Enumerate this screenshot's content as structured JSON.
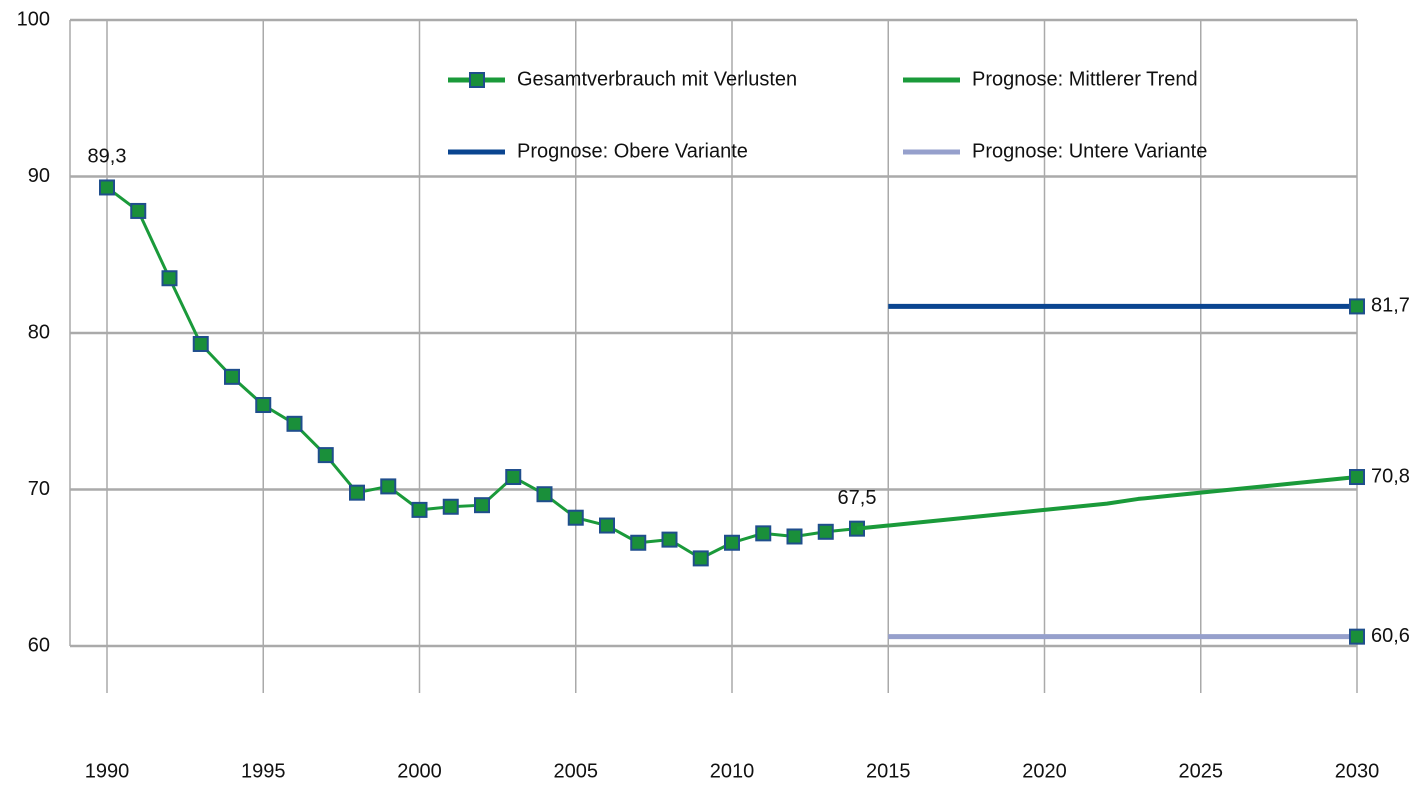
{
  "chart_data": {
    "type": "line",
    "x": [
      1990,
      1991,
      1992,
      1993,
      1994,
      1995,
      1996,
      1997,
      1998,
      1999,
      2000,
      2001,
      2002,
      2003,
      2004,
      2005,
      2006,
      2007,
      2008,
      2009,
      2010,
      2011,
      2012,
      2013,
      2014,
      2015,
      2016,
      2017,
      2018,
      2019,
      2020,
      2021,
      2022,
      2023,
      2024,
      2025,
      2026,
      2027,
      2028,
      2029,
      2030
    ],
    "xlim": [
      1990,
      2030
    ],
    "xticks": [
      1990,
      1995,
      2000,
      2005,
      2010,
      2015,
      2020,
      2025,
      2030
    ],
    "ylim": [
      57,
      100
    ],
    "yticks": [
      60,
      70,
      80,
      90,
      100
    ],
    "grid": true,
    "legend": "top",
    "series": [
      {
        "name": "Gesamtverbrauch mit Verlusten",
        "color": "#1a9a3a",
        "marker": "all",
        "values": [
          89.3,
          87.8,
          83.5,
          79.3,
          77.2,
          75.4,
          74.2,
          72.2,
          69.8,
          70.2,
          68.7,
          68.9,
          69.0,
          70.8,
          69.7,
          68.2,
          67.7,
          66.6,
          66.8,
          65.6,
          66.6,
          67.2,
          67.0,
          67.3,
          67.5,
          null,
          null,
          null,
          null,
          null,
          null,
          null,
          null,
          null,
          null,
          null,
          null,
          null,
          null,
          null,
          null
        ],
        "value_labels": [
          "89,3",
          null,
          null,
          null,
          null,
          null,
          null,
          null,
          null,
          null,
          null,
          null,
          null,
          null,
          null,
          null,
          null,
          null,
          null,
          null,
          null,
          null,
          null,
          null,
          "67,5",
          null,
          null,
          null,
          null,
          null,
          null,
          null,
          null,
          null,
          null,
          null,
          null,
          null,
          null,
          null,
          null
        ]
      },
      {
        "name": "Prognose: Mittlerer Trend",
        "color": "#1a9a3a",
        "marker": "last",
        "values": [
          null,
          null,
          null,
          null,
          null,
          null,
          null,
          null,
          null,
          null,
          null,
          null,
          null,
          null,
          null,
          null,
          null,
          null,
          null,
          null,
          null,
          null,
          null,
          null,
          67.5,
          67.7,
          67.9,
          68.1,
          68.3,
          68.5,
          68.7,
          68.9,
          69.1,
          69.4,
          69.6,
          69.8,
          70.0,
          70.2,
          70.4,
          70.6,
          70.8
        ],
        "value_labels": [
          null,
          null,
          null,
          null,
          null,
          null,
          null,
          null,
          null,
          null,
          null,
          null,
          null,
          null,
          null,
          null,
          null,
          null,
          null,
          null,
          null,
          null,
          null,
          null,
          null,
          null,
          null,
          null,
          null,
          null,
          null,
          null,
          null,
          null,
          null,
          null,
          null,
          null,
          null,
          null,
          "70,8"
        ]
      },
      {
        "name": "Prognose: Obere Variante",
        "color": "#0a4590",
        "marker": "last",
        "values": [
          null,
          null,
          null,
          null,
          null,
          null,
          null,
          null,
          null,
          null,
          null,
          null,
          null,
          null,
          null,
          null,
          null,
          null,
          null,
          null,
          null,
          null,
          null,
          null,
          null,
          81.7,
          81.7,
          81.7,
          81.7,
          81.7,
          81.7,
          81.7,
          81.7,
          81.7,
          81.7,
          81.7,
          81.7,
          81.7,
          81.7,
          81.7,
          81.7
        ],
        "value_labels": [
          null,
          null,
          null,
          null,
          null,
          null,
          null,
          null,
          null,
          null,
          null,
          null,
          null,
          null,
          null,
          null,
          null,
          null,
          null,
          null,
          null,
          null,
          null,
          null,
          null,
          null,
          null,
          null,
          null,
          null,
          null,
          null,
          null,
          null,
          null,
          null,
          null,
          null,
          null,
          null,
          "81,7"
        ]
      },
      {
        "name": "Prognose: Untere Variante",
        "color": "#96a0cc",
        "marker": "last",
        "values": [
          null,
          null,
          null,
          null,
          null,
          null,
          null,
          null,
          null,
          null,
          null,
          null,
          null,
          null,
          null,
          null,
          null,
          null,
          null,
          null,
          null,
          null,
          null,
          null,
          null,
          60.6,
          60.6,
          60.6,
          60.6,
          60.6,
          60.6,
          60.6,
          60.6,
          60.6,
          60.6,
          60.6,
          60.6,
          60.6,
          60.6,
          60.6,
          60.6
        ],
        "value_labels": [
          null,
          null,
          null,
          null,
          null,
          null,
          null,
          null,
          null,
          null,
          null,
          null,
          null,
          null,
          null,
          null,
          null,
          null,
          null,
          null,
          null,
          null,
          null,
          null,
          null,
          null,
          null,
          null,
          null,
          null,
          null,
          null,
          null,
          null,
          null,
          null,
          null,
          null,
          null,
          null,
          "60,6"
        ]
      }
    ]
  }
}
